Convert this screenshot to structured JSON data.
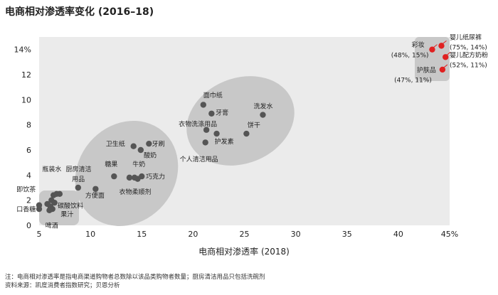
{
  "chart_data": {
    "type": "scatter",
    "title": "电商相对渗透率变化 (2016–18)",
    "xlabel": "电商相对渗透率 (2018)",
    "ylabel": "",
    "xlim": [
      5,
      45
    ],
    "ylim": [
      0,
      15
    ],
    "x_ticks": [
      5,
      10,
      15,
      20,
      25,
      30,
      35,
      40,
      45
    ],
    "x_tick_labels": [
      "5",
      "10",
      "15",
      "20",
      "25",
      "30",
      "35",
      "40",
      "45%"
    ],
    "y_ticks": [
      0,
      2,
      4,
      6,
      8,
      10,
      12,
      14
    ],
    "y_tick_labels": [
      "0",
      "2",
      "4",
      "6",
      "8",
      "10",
      "12",
      "14%"
    ],
    "grid": false,
    "colors": {
      "background": "#ebebeb",
      "cluster": "#c8c8c8",
      "point": "#555555",
      "highlight": "#e02020"
    },
    "points": [
      {
        "label": "即饮茶",
        "x": 5.0,
        "y": 1.6
      },
      {
        "label": "口香糖",
        "x": 5.0,
        "y": 1.3
      },
      {
        "label": "",
        "x": 5.8,
        "y": 1.7
      },
      {
        "label": "",
        "x": 6.1,
        "y": 1.5
      },
      {
        "label": "",
        "x": 6.2,
        "y": 2.0
      },
      {
        "label": "瓶装水",
        "x": 6.4,
        "y": 2.4
      },
      {
        "label": "",
        "x": 6.7,
        "y": 2.5
      },
      {
        "label": "",
        "x": 7.0,
        "y": 2.5
      },
      {
        "label": "碳酸饮料",
        "x": 6.5,
        "y": 1.8
      },
      {
        "label": "果汁",
        "x": 6.3,
        "y": 1.3
      },
      {
        "label": "啤酒",
        "x": 6.0,
        "y": 1.2
      },
      {
        "label": "厨房清洁用品",
        "x": 8.8,
        "y": 3.0
      },
      {
        "label": "方便面",
        "x": 10.5,
        "y": 2.9
      },
      {
        "label": "糖果",
        "x": 12.3,
        "y": 3.9
      },
      {
        "label": "牛奶",
        "x": 13.8,
        "y": 3.8
      },
      {
        "label": "",
        "x": 14.3,
        "y": 3.8
      },
      {
        "label": "巧克力",
        "x": 15.0,
        "y": 3.9
      },
      {
        "label": "衣物柔顺剂",
        "x": 14.6,
        "y": 3.7
      },
      {
        "label": "卫生纸",
        "x": 14.2,
        "y": 6.3
      },
      {
        "label": "牙刷",
        "x": 15.7,
        "y": 6.5
      },
      {
        "label": "酸奶",
        "x": 14.9,
        "y": 6.0
      },
      {
        "label": "面巾纸",
        "x": 21.0,
        "y": 9.6
      },
      {
        "label": "牙膏",
        "x": 21.8,
        "y": 8.9
      },
      {
        "label": "衣物洗涤用品",
        "x": 21.3,
        "y": 7.6
      },
      {
        "label": "护发素",
        "x": 22.3,
        "y": 7.3
      },
      {
        "label": "个人清洁用品",
        "x": 21.2,
        "y": 6.6
      },
      {
        "label": "洗发水",
        "x": 26.8,
        "y": 8.8
      },
      {
        "label": "饼干",
        "x": 25.2,
        "y": 7.3
      },
      {
        "label": "彩妆",
        "x": 43.3,
        "y": 14.0,
        "highlight": true
      },
      {
        "label": "",
        "x": 44.2,
        "y": 14.3,
        "highlight": true
      },
      {
        "label": "婴儿配方奶粉",
        "x": 44.6,
        "y": 13.4,
        "highlight": true
      },
      {
        "label": "护肤品",
        "x": 44.3,
        "y": 12.4,
        "highlight": true
      }
    ],
    "annotations": [
      {
        "text": "即饮茶",
        "x": 2.8,
        "y": 2.7,
        "anchor": "start"
      },
      {
        "text": "口香糖",
        "x": 2.8,
        "y": 1.1,
        "anchor": "start"
      },
      {
        "text": "瓶装水",
        "x": 5.3,
        "y": 4.3,
        "anchor": "start"
      },
      {
        "text": "碳酸饮料",
        "x": 6.8,
        "y": 1.4,
        "anchor": "start"
      },
      {
        "text": "果汁",
        "x": 7.1,
        "y": 0.7,
        "anchor": "start"
      },
      {
        "text": "啤酒",
        "x": 5.6,
        "y": -0.2,
        "anchor": "start"
      },
      {
        "text": "厨房清洁",
        "x": 7.6,
        "y": 4.3,
        "anchor": "start"
      },
      {
        "text": "用品",
        "x": 8.2,
        "y": 3.5,
        "anchor": "start"
      },
      {
        "text": "方便面",
        "x": 9.5,
        "y": 2.2,
        "anchor": "start"
      },
      {
        "text": "糖果",
        "x": 11.4,
        "y": 4.7,
        "anchor": "start"
      },
      {
        "text": "牛奶",
        "x": 14.1,
        "y": 4.7,
        "anchor": "start"
      },
      {
        "text": "巧克力",
        "x": 15.4,
        "y": 3.7,
        "anchor": "start"
      },
      {
        "text": "衣物柔顺剂",
        "x": 12.8,
        "y": 2.5,
        "anchor": "start"
      },
      {
        "text": "卫生纸",
        "x": 11.5,
        "y": 6.3,
        "anchor": "start"
      },
      {
        "text": "牙刷",
        "x": 16.0,
        "y": 6.3,
        "anchor": "start"
      },
      {
        "text": "酸奶",
        "x": 15.2,
        "y": 5.4,
        "anchor": "start"
      },
      {
        "text": "面巾纸",
        "x": 21.0,
        "y": 10.2,
        "anchor": "start"
      },
      {
        "text": "牙膏",
        "x": 22.2,
        "y": 8.8,
        "anchor": "start"
      },
      {
        "text": "衣物洗涤用品",
        "x": 18.6,
        "y": 7.9,
        "anchor": "start"
      },
      {
        "text": "护发素",
        "x": 22.1,
        "y": 6.5,
        "anchor": "start"
      },
      {
        "text": "个人清洁用品",
        "x": 18.7,
        "y": 5.1,
        "anchor": "start"
      },
      {
        "text": "洗发水",
        "x": 25.9,
        "y": 9.3,
        "anchor": "start"
      },
      {
        "text": "饼干",
        "x": 25.3,
        "y": 7.8,
        "anchor": "start"
      },
      {
        "text": "彩妆",
        "x": 41.3,
        "y": 14.2,
        "anchor": "start"
      },
      {
        "text": "(48%, 15%)",
        "x": 39.3,
        "y": 13.4,
        "anchor": "start"
      },
      {
        "text": "婴儿纸尿裤",
        "x": 45.0,
        "y": 14.8,
        "anchor": "start"
      },
      {
        "text": "(75%, 14%)",
        "x": 45.0,
        "y": 14.0,
        "anchor": "start"
      },
      {
        "text": "婴儿配方奶粉",
        "x": 45.0,
        "y": 13.4,
        "anchor": "start"
      },
      {
        "text": "(52%, 11%)",
        "x": 45.0,
        "y": 12.6,
        "anchor": "start"
      },
      {
        "text": "护肤品",
        "x": 41.8,
        "y": 12.2,
        "anchor": "start"
      },
      {
        "text": "(47%, 11%)",
        "x": 39.6,
        "y": 11.4,
        "anchor": "start"
      }
    ]
  },
  "footnotes": {
    "note": "注：电商相对渗透率是指电商渠道购物者总数除以该品类购物者数量；厨房清洁用品只包括洗碗剂",
    "source": "资料来源：凯度消费者指数研究；贝恩分析"
  }
}
